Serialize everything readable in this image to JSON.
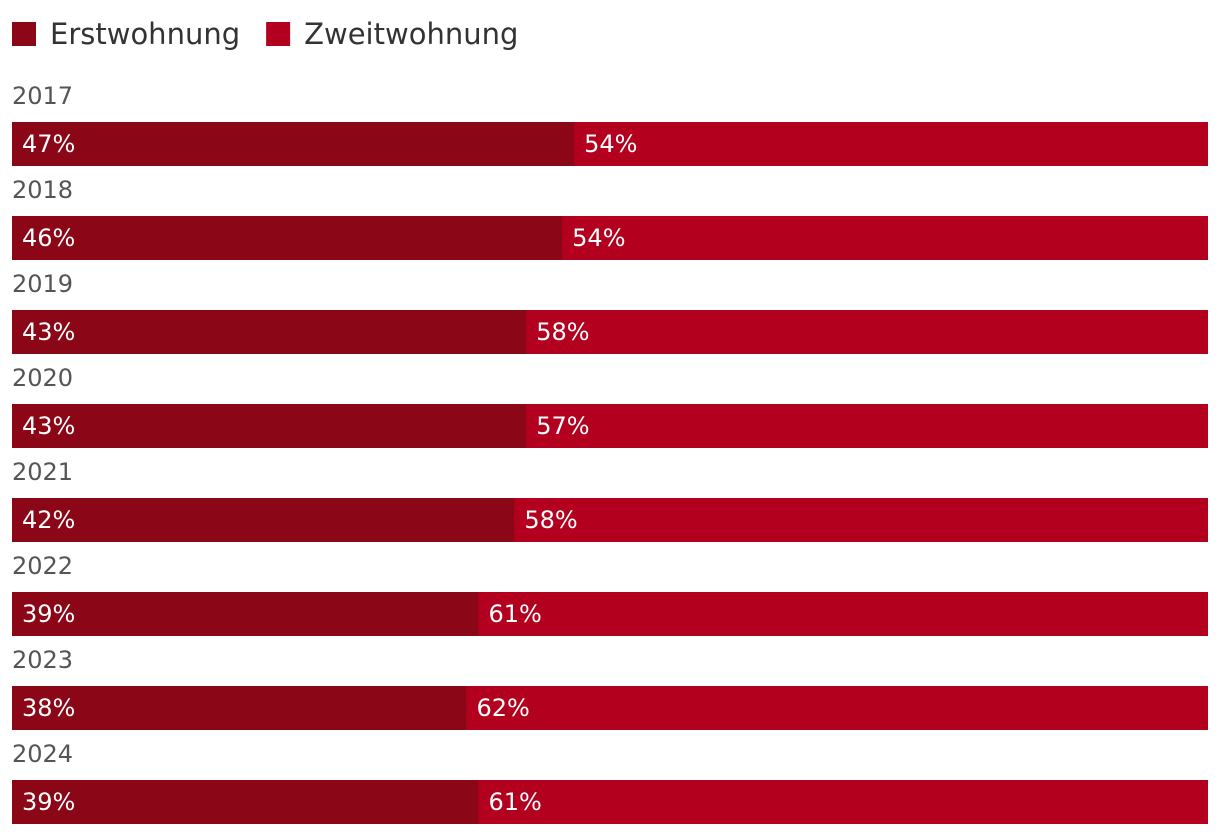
{
  "chart_data": {
    "type": "bar",
    "orientation": "horizontal",
    "stacked": true,
    "title": "",
    "xlabel": "",
    "ylabel": "",
    "legend_position": "top-left",
    "categories": [
      "2017",
      "2018",
      "2019",
      "2020",
      "2021",
      "2022",
      "2023",
      "2024"
    ],
    "series": [
      {
        "name": "Erstwohnung",
        "color": "#8b0616",
        "values": [
          47,
          46,
          43,
          43,
          42,
          39,
          38,
          39
        ],
        "labels": [
          "47%",
          "46%",
          "43%",
          "43%",
          "42%",
          "39%",
          "38%",
          "39%"
        ]
      },
      {
        "name": "Zweitwohnung",
        "color": "#b3001f",
        "values": [
          54,
          54,
          58,
          57,
          58,
          61,
          62,
          61
        ],
        "labels": [
          "54%",
          "54%",
          "58%",
          "57%",
          "58%",
          "61%",
          "62%",
          "61%"
        ]
      }
    ]
  }
}
